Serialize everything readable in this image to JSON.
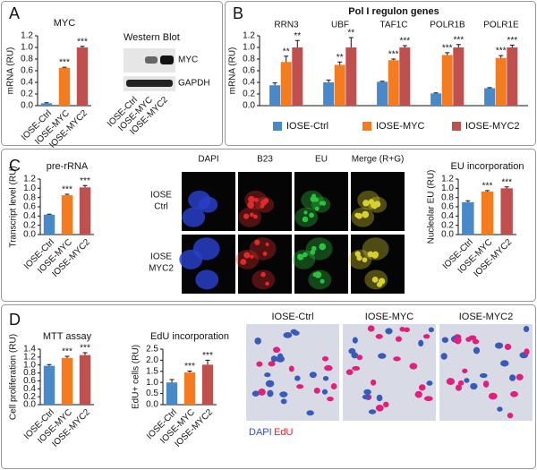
{
  "chart_data": [
    {
      "type": "bar",
      "title": "MYC",
      "y_label": "mRNA (RU)",
      "categories": [
        "IOSE-Ctrl",
        "IOSE-MYC",
        "IOSE-MYC2"
      ],
      "colors": [
        "#4a89c8",
        "#f47c20",
        "#c0504d"
      ],
      "values": [
        0.04,
        0.65,
        1.0
      ],
      "errors": [
        0.01,
        0.01,
        0.02
      ],
      "annotations": [
        null,
        "***",
        "***"
      ],
      "ylim": [
        0,
        1.2
      ],
      "yticks": [
        {
          "value": 0,
          "label": "0.0"
        },
        0.2,
        0.4,
        0.6,
        0.8,
        {
          "value": 1,
          "label": "1.0"
        },
        1.2
      ]
    },
    {
      "type": "grouped_bar",
      "title": "Pol I regulon genes",
      "y_label": "mRNA (RU)",
      "categories": [
        "RRN3",
        "UBF",
        "TAF1C",
        "POLR1B",
        "POLR1E"
      ],
      "legend": "bottom",
      "series": [
        {
          "name": "IOSE-Ctrl",
          "color": "#4a89c8",
          "values": [
            0.35,
            0.4,
            0.41,
            0.21,
            0.3
          ],
          "errors": [
            0.04,
            0.04,
            0.01,
            0.01,
            0.01
          ],
          "annotations": [
            null,
            null,
            null,
            null,
            null
          ]
        },
        {
          "name": "IOSE-MYC",
          "color": "#f47c20",
          "values": [
            0.75,
            0.7,
            0.78,
            0.87,
            0.82
          ],
          "errors": [
            0.1,
            0.05,
            0.02,
            0.04,
            0.04
          ],
          "annotations": [
            "**",
            "**",
            "***",
            "***",
            "***"
          ]
        },
        {
          "name": "IOSE-MYC2",
          "color": "#c0504d",
          "values": [
            1.0,
            1.0,
            1.0,
            1.0,
            1.0
          ],
          "errors": [
            0.12,
            0.17,
            0.03,
            0.05,
            0.04
          ],
          "annotations": [
            "**",
            "**",
            "***",
            "***",
            "***"
          ]
        }
      ],
      "ylim": [
        0,
        1.2
      ],
      "yticks": [
        {
          "value": 0,
          "label": "0.0"
        },
        0.2,
        0.4,
        0.6,
        0.8,
        {
          "value": 1,
          "label": "1.0"
        },
        1.2
      ]
    },
    {
      "type": "bar",
      "title": "pre-rRNA",
      "y_label": "Transcript level (RU)",
      "categories": [
        "IOSE-Ctrl",
        "IOSE-MYC",
        "IOSE-MYC2"
      ],
      "colors": [
        "#4a89c8",
        "#f47c20",
        "#c0504d"
      ],
      "values": [
        0.43,
        0.85,
        1.02
      ],
      "errors": [
        0.01,
        0.02,
        0.04
      ],
      "annotations": [
        null,
        "***",
        "***"
      ],
      "ylim": [
        0,
        1.2
      ],
      "yticks": [
        {
          "value": 0,
          "label": "0.0"
        },
        0.2,
        0.4,
        0.6,
        0.8,
        {
          "value": 1,
          "label": "1.0"
        },
        1.2
      ]
    },
    {
      "type": "bar",
      "title": "EU incorporation",
      "y_label": "Nucleolar EU (RU)",
      "categories": [
        "IOSE-Ctrl",
        "IOSE-MYC",
        "IOSE-MYC2"
      ],
      "colors": [
        "#4a89c8",
        "#f47c20",
        "#c0504d"
      ],
      "values": [
        0.7,
        0.93,
        1.0
      ],
      "errors": [
        0.03,
        0.02,
        0.03
      ],
      "annotations": [
        null,
        "***",
        "***"
      ],
      "ylim": [
        0,
        1.2
      ],
      "yticks": [
        {
          "value": 0,
          "label": "0.0"
        },
        0.2,
        0.4,
        0.6,
        0.8,
        {
          "value": 1,
          "label": "1.0"
        },
        1.2
      ]
    },
    {
      "type": "bar",
      "title": "MTT assay",
      "y_label": "Cell proliferation (RU)",
      "categories": [
        "IOSE-Ctrl",
        "IOSE-MYC",
        "IOSE-MYC2"
      ],
      "colors": [
        "#4a89c8",
        "#f47c20",
        "#c0504d"
      ],
      "values": [
        0.98,
        1.18,
        1.25
      ],
      "errors": [
        0.03,
        0.04,
        0.06
      ],
      "annotations": [
        null,
        "***",
        "***"
      ],
      "ylim": [
        0,
        1.4
      ],
      "yticks": [
        {
          "value": 0,
          "label": "0.0"
        },
        0.2,
        0.4,
        0.6,
        0.8,
        {
          "value": 1,
          "label": "1.0"
        },
        1.2,
        1.4
      ]
    },
    {
      "type": "bar",
      "title": "EdU incorporation",
      "y_label": "EdU+ cells (RU)",
      "categories": [
        "IOSE-Ctrl",
        "IOSE-MYC",
        "IOSE-MYC2"
      ],
      "colors": [
        "#4a89c8",
        "#f47c20",
        "#c0504d"
      ],
      "values": [
        1.0,
        1.45,
        1.8
      ],
      "errors": [
        0.13,
        0.06,
        0.2
      ],
      "annotations": [
        null,
        "***",
        "***"
      ],
      "ylim": [
        0,
        2.5
      ],
      "yticks": [
        {
          "value": 0,
          "label": "0.0"
        },
        0.5,
        {
          "value": 1,
          "label": "1.0"
        },
        1.5,
        {
          "value": 2,
          "label": "2.0"
        },
        2.5
      ]
    }
  ],
  "panels": {
    "letters": [
      "A",
      "B",
      "C",
      "D"
    ],
    "western": {
      "title": "Western Blot",
      "bands": [
        "MYC",
        "GAPDH"
      ],
      "lanes": [
        "IOSE-Ctrl",
        "IOSE-MYC",
        "IOSE-MYC2"
      ]
    },
    "microscopy": {
      "columns": [
        "DAPI",
        "B23",
        "EU",
        "Merge (R+G)"
      ],
      "rows": [
        [
          "IOSE",
          "Ctrl"
        ],
        [
          "IOSE",
          "MYC2"
        ]
      ]
    },
    "edu_images": {
      "titles": [
        "IOSE-Ctrl",
        "IOSE-MYC",
        "IOSE-MYC2"
      ],
      "legend": [
        "DAPI",
        "EdU"
      ]
    }
  }
}
